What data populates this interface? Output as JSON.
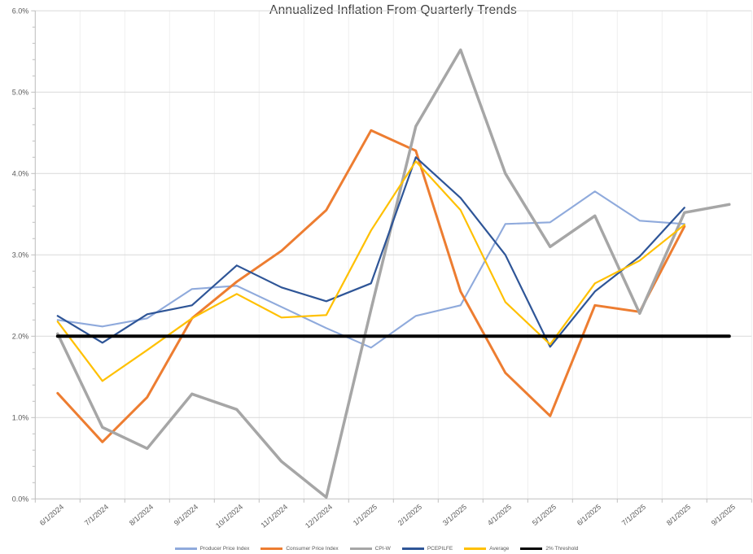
{
  "title": "Annualized Inflation From Quarterly Trends",
  "chart_data": {
    "type": "line",
    "title": "Annualized Inflation From Quarterly Trends",
    "xlabel": "",
    "ylabel": "",
    "grid": true,
    "legend_position": "bottom",
    "y_axis": {
      "min": 0,
      "max": 6,
      "major_step": 1,
      "minor_tick_step": 0.2,
      "tick_labels": [
        "0.0%",
        "1.0%",
        "2.0%",
        "3.0%",
        "4.0%",
        "5.0%",
        "6.0%"
      ]
    },
    "categories": [
      "6/1/2024",
      "7/1/2024",
      "8/1/2024",
      "9/1/2024",
      "10/1/2024",
      "11/1/2024",
      "12/1/2024",
      "1/1/2025",
      "2/1/2025",
      "3/1/2025",
      "4/1/2025",
      "5/1/2025",
      "6/1/2025",
      "7/1/2025",
      "8/1/2025",
      "9/1/2025"
    ],
    "series": [
      {
        "name": "Producer Price Index",
        "color": "#8FAADC",
        "width": 2.1,
        "values": [
          2.2,
          2.12,
          2.22,
          2.58,
          2.62,
          2.36,
          2.1,
          1.86,
          2.25,
          2.38,
          3.38,
          3.4,
          3.78,
          3.42,
          3.38,
          null
        ]
      },
      {
        "name": "Consumer Price Index",
        "color": "#ED7D31",
        "width": 3,
        "values": [
          1.3,
          0.7,
          1.25,
          2.22,
          2.67,
          3.05,
          3.55,
          4.53,
          4.28,
          2.55,
          1.55,
          1.02,
          2.38,
          2.3,
          3.35,
          null
        ]
      },
      {
        "name": "CPI-W",
        "color": "#A6A6A6",
        "width": 3.5,
        "values": [
          2.03,
          0.88,
          0.62,
          1.29,
          1.1,
          0.46,
          0.02,
          2.33,
          4.58,
          5.52,
          4.0,
          3.1,
          3.48,
          2.28,
          3.52,
          3.62
        ]
      },
      {
        "name": "PCEPILFE",
        "color": "#2E5597",
        "width": 2.2,
        "values": [
          2.25,
          1.92,
          2.27,
          2.38,
          2.87,
          2.6,
          2.43,
          2.65,
          4.2,
          3.7,
          3.0,
          1.87,
          2.55,
          2.98,
          3.58,
          null
        ]
      },
      {
        "name": "Average",
        "color": "#FFC000",
        "width": 2.2,
        "values": [
          2.18,
          1.45,
          1.83,
          2.22,
          2.52,
          2.23,
          2.26,
          3.3,
          4.15,
          3.55,
          2.42,
          1.9,
          2.65,
          2.93,
          3.37,
          null
        ]
      },
      {
        "name": "2% Threshold",
        "color": "#000000",
        "width": 4,
        "values": [
          2,
          2,
          2,
          2,
          2,
          2,
          2,
          2,
          2,
          2,
          2,
          2,
          2,
          2,
          2,
          2
        ]
      }
    ]
  },
  "style": {
    "axis_line_color": "#BFBFBF",
    "gridline_color": "#D9D9D9",
    "vertical_gridline_color": "#EFEFEF",
    "tick_label_color": "#595959",
    "title_color": "#3F3F3F"
  }
}
